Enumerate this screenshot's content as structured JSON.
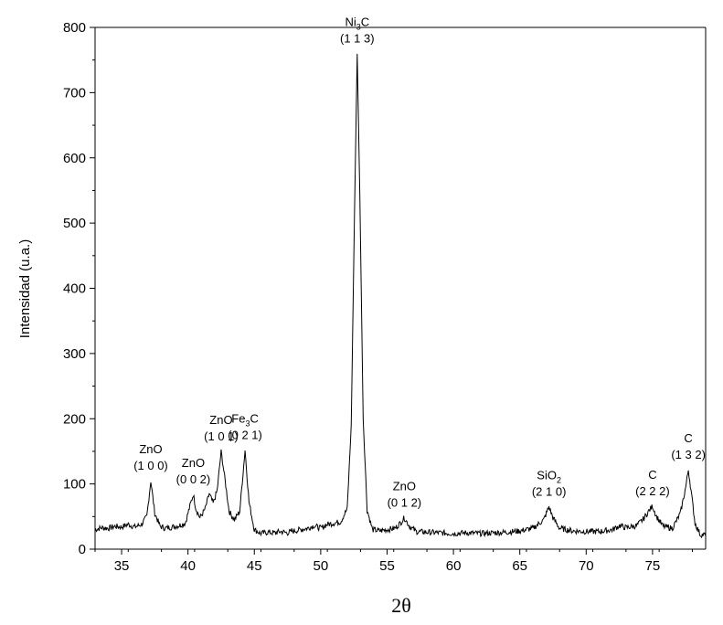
{
  "chart_data": {
    "type": "line",
    "title": "",
    "xlabel": "2θ",
    "ylabel": "Intensidad (u.a.)",
    "xlim": [
      33,
      79
    ],
    "ylim": [
      0,
      800
    ],
    "x_ticks": [
      35,
      40,
      45,
      50,
      55,
      60,
      65,
      70,
      75
    ],
    "y_ticks": [
      0,
      100,
      200,
      300,
      400,
      500,
      600,
      700,
      800
    ],
    "x_tick_labels": [
      "35",
      "40",
      "45",
      "50",
      "55",
      "60",
      "65",
      "70",
      "75"
    ],
    "y_tick_labels": [
      "0",
      "100",
      "200",
      "300",
      "400",
      "500",
      "600",
      "700",
      "800"
    ],
    "grid": false,
    "legend": "none",
    "line_color": "#000000",
    "baseline_points": [
      [
        33.0,
        30
      ],
      [
        33.5,
        33
      ],
      [
        34.0,
        32
      ],
      [
        34.5,
        35
      ],
      [
        35.0,
        34
      ],
      [
        35.5,
        38
      ],
      [
        36.0,
        34
      ],
      [
        36.5,
        38
      ],
      [
        36.9,
        50
      ],
      [
        37.2,
        105
      ],
      [
        37.5,
        55
      ],
      [
        37.9,
        35
      ],
      [
        38.3,
        32
      ],
      [
        38.8,
        34
      ],
      [
        39.3,
        36
      ],
      [
        39.8,
        40
      ],
      [
        40.2,
        70
      ],
      [
        40.4,
        84
      ],
      [
        40.6,
        62
      ],
      [
        40.9,
        48
      ],
      [
        41.3,
        62
      ],
      [
        41.6,
        85
      ],
      [
        41.9,
        70
      ],
      [
        42.2,
        90
      ],
      [
        42.5,
        150
      ],
      [
        42.8,
        105
      ],
      [
        43.1,
        58
      ],
      [
        43.5,
        45
      ],
      [
        43.9,
        58
      ],
      [
        44.3,
        152
      ],
      [
        44.6,
        72
      ],
      [
        45.0,
        30
      ],
      [
        45.5,
        24
      ],
      [
        46.0,
        26
      ],
      [
        46.5,
        25
      ],
      [
        47.0,
        27
      ],
      [
        47.5,
        25
      ],
      [
        48.0,
        28
      ],
      [
        48.5,
        30
      ],
      [
        49.0,
        32
      ],
      [
        49.5,
        36
      ],
      [
        50.0,
        32
      ],
      [
        50.5,
        38
      ],
      [
        51.0,
        40
      ],
      [
        51.5,
        42
      ],
      [
        52.0,
        62
      ],
      [
        52.3,
        190
      ],
      [
        52.55,
        520
      ],
      [
        52.75,
        760
      ],
      [
        52.95,
        540
      ],
      [
        53.2,
        200
      ],
      [
        53.5,
        60
      ],
      [
        53.9,
        30
      ],
      [
        54.4,
        28
      ],
      [
        55.0,
        30
      ],
      [
        55.6,
        32
      ],
      [
        56.0,
        40
      ],
      [
        56.3,
        48
      ],
      [
        56.7,
        35
      ],
      [
        57.2,
        27
      ],
      [
        58.0,
        26
      ],
      [
        59.0,
        25
      ],
      [
        60.0,
        24
      ],
      [
        61.0,
        25
      ],
      [
        62.0,
        24
      ],
      [
        63.0,
        25
      ],
      [
        64.0,
        26
      ],
      [
        65.0,
        28
      ],
      [
        66.0,
        32
      ],
      [
        66.8,
        45
      ],
      [
        67.2,
        65
      ],
      [
        67.5,
        48
      ],
      [
        68.0,
        32
      ],
      [
        69.0,
        28
      ],
      [
        70.0,
        27
      ],
      [
        71.0,
        27
      ],
      [
        72.0,
        30
      ],
      [
        72.5,
        36
      ],
      [
        73.0,
        33
      ],
      [
        73.8,
        36
      ],
      [
        74.3,
        46
      ],
      [
        74.7,
        58
      ],
      [
        75.0,
        66
      ],
      [
        75.3,
        50
      ],
      [
        75.8,
        35
      ],
      [
        76.5,
        32
      ],
      [
        77.1,
        55
      ],
      [
        77.5,
        95
      ],
      [
        77.7,
        122
      ],
      [
        77.9,
        90
      ],
      [
        78.2,
        40
      ],
      [
        78.6,
        22
      ],
      [
        79.0,
        22
      ]
    ],
    "annotations": [
      {
        "id": "zno-100",
        "compound": "ZnO",
        "sub": "",
        "compound_tail": "",
        "hkl": "(1 0 0)",
        "x": 37.2,
        "y": 105
      },
      {
        "id": "zno-002",
        "compound": "ZnO",
        "sub": "",
        "compound_tail": "",
        "hkl": "(0 0 2)",
        "x": 40.4,
        "y": 84
      },
      {
        "id": "zno-101",
        "compound": "ZnO",
        "sub": "",
        "compound_tail": "",
        "hkl": "(1 0 1)",
        "x": 42.5,
        "y": 150
      },
      {
        "id": "fe3c-021",
        "compound": "Fe",
        "sub": "3",
        "compound_tail": "C",
        "hkl": "(0 2 1)",
        "x": 44.3,
        "y": 152
      },
      {
        "id": "ni3c-113",
        "compound": "Ni",
        "sub": "3",
        "compound_tail": "C",
        "hkl": "(1 1 3)",
        "x": 52.75,
        "y": 760
      },
      {
        "id": "zno-012",
        "compound": "ZnO",
        "sub": "",
        "compound_tail": "",
        "hkl": "(0 1 2)",
        "x": 56.3,
        "y": 48
      },
      {
        "id": "sio2-210",
        "compound": "SiO",
        "sub": "2",
        "compound_tail": "",
        "hkl": "(2 1 0)",
        "x": 67.2,
        "y": 65
      },
      {
        "id": "c-222",
        "compound": "C",
        "sub": "",
        "compound_tail": "",
        "hkl": "(2 2 2)",
        "x": 75.0,
        "y": 66
      },
      {
        "id": "c-132",
        "compound": "C",
        "sub": "",
        "compound_tail": "",
        "hkl": "(1 3 2)",
        "x": 77.7,
        "y": 122
      }
    ]
  }
}
